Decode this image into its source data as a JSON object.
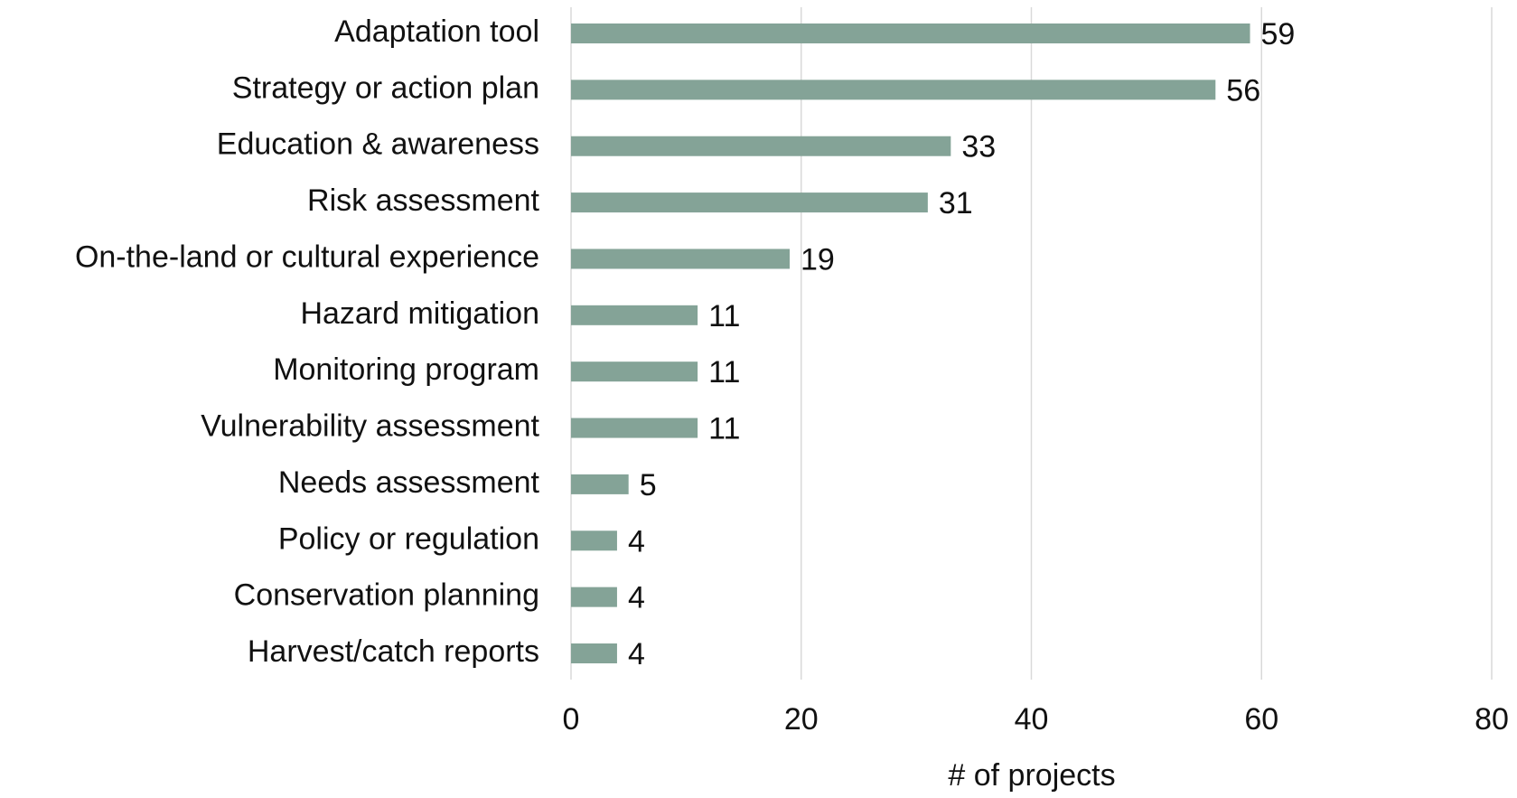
{
  "chart_data": {
    "type": "bar",
    "orientation": "horizontal",
    "categories": [
      "Adaptation tool",
      "Strategy or action plan",
      "Education & awareness",
      "Risk assessment",
      "On-the-land or cultural experience",
      "Hazard mitigation",
      "Monitoring program",
      "Vulnerability assessment",
      "Needs assessment",
      "Policy or regulation",
      "Conservation planning",
      "Harvest/catch reports"
    ],
    "values": [
      59,
      56,
      33,
      31,
      19,
      11,
      11,
      11,
      5,
      4,
      4,
      4
    ],
    "color": "#84a397",
    "xlabel": "# of projects",
    "xlim": [
      0,
      80
    ],
    "xticks": [
      0,
      20,
      40,
      60,
      80
    ],
    "grid": true
  }
}
